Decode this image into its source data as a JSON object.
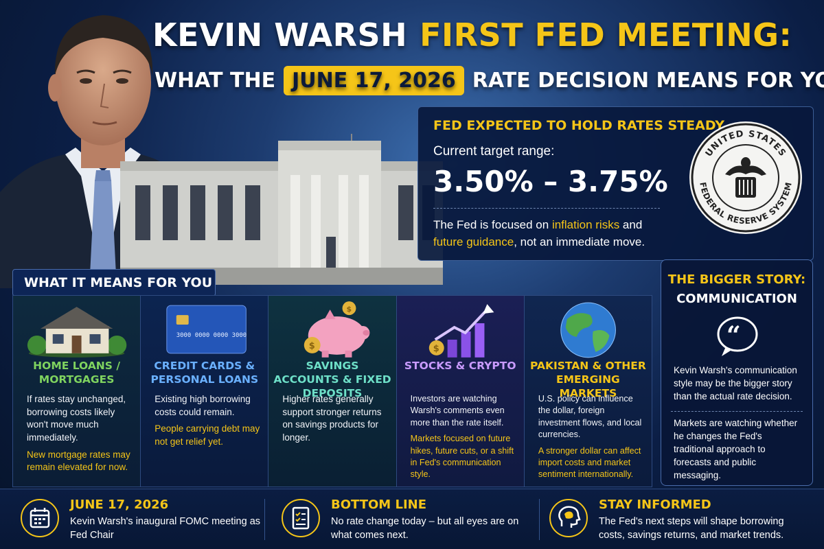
{
  "title": {
    "line1_white": "KEVIN WARSH",
    "line1_yellow": "FIRST FED MEETING:",
    "line2_pre": "WHAT THE",
    "line2_date": "JUNE 17, 2026",
    "line2_post": "RATE DECISION MEANS FOR YOU"
  },
  "fed_panel": {
    "heading": "FED EXPECTED TO HOLD RATES STEADY",
    "subheading": "Current target range:",
    "range": "3.50% – 3.75%",
    "note_1": "The Fed is focused on ",
    "note_hl1": "inflation risks",
    "note_2": " and ",
    "note_hl2": "future guidance",
    "note_3": ", not an immediate move.",
    "seal_text_top": "UNITED STATES",
    "seal_text_bottom": "FEDERAL RESERVE SYSTEM"
  },
  "what_it_means": {
    "tab_label": "WHAT IT MEANS FOR YOU",
    "cards": [
      {
        "title": "HOME LOANS / MORTGAGES",
        "body": "If rates stay unchanged, borrowing costs likely won't move much immediately.",
        "emphasis": "New mortgage rates may remain elevated for now.",
        "icon": "house-icon"
      },
      {
        "title": "CREDIT CARDS & PERSONAL LOANS",
        "body": "Existing high borrowing costs could remain.",
        "emphasis": "People carrying debt may not get relief yet.",
        "icon": "credit-card-icon",
        "card_number": "3000 0000 0000 3000"
      },
      {
        "title": "SAVINGS ACCOUNTS & FIXED DEPOSITS",
        "body": "Higher rates generally support stronger returns on savings products for longer.",
        "emphasis": "",
        "icon": "piggy-bank-icon"
      },
      {
        "title": "STOCKS & CRYPTO",
        "body": "Investors are watching Warsh's comments even more than the rate itself.",
        "emphasis": "Markets focused on future hikes, future cuts, or a shift in Fed's communication style.",
        "icon": "growth-chart-icon"
      },
      {
        "title": "PAKISTAN & OTHER EMERGING MARKETS",
        "body": "U.S. policy can influence the dollar, foreign investment flows, and local currencies.",
        "emphasis": "A stronger dollar can affect import costs and market sentiment internationally.",
        "icon": "globe-icon"
      }
    ]
  },
  "bigger_story": {
    "heading1": "THE BIGGER STORY:",
    "heading2": "COMMUNICATION",
    "para1": "Kevin Warsh's communication style may be the bigger story than the actual rate decision.",
    "para2": "Markets are watching whether he changes the Fed's traditional approach to forecasts and public messaging."
  },
  "footer": [
    {
      "title": "JUNE 17, 2026",
      "text": "Kevin Warsh's inaugural FOMC meeting as Fed Chair",
      "icon": "calendar-icon"
    },
    {
      "title": "BOTTOM LINE",
      "text": "No rate change today – but all eyes are on what comes next.",
      "icon": "checklist-icon"
    },
    {
      "title": "STAY INFORMED",
      "text": "The Fed's next steps will shape borrowing costs, savings returns, and market trends.",
      "icon": "brain-head-icon"
    }
  ],
  "colors": {
    "accent": "#f5c518",
    "background": "#071633",
    "panel": "#08183c"
  }
}
